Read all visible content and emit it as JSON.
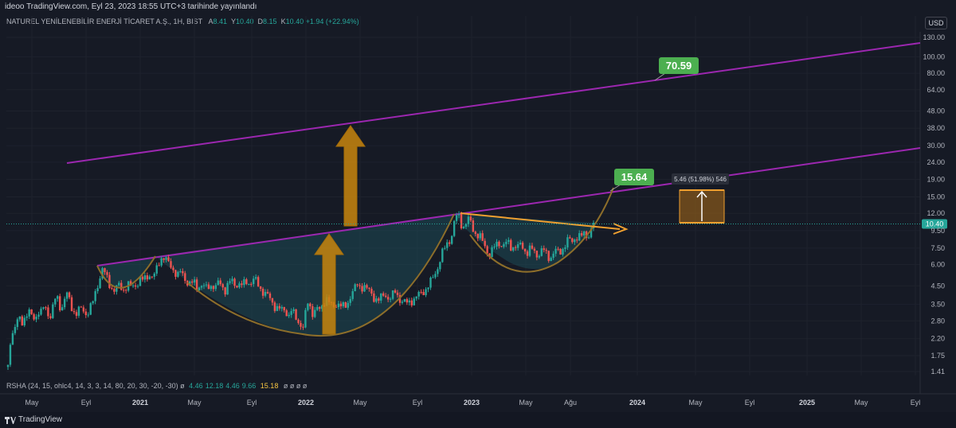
{
  "caption": "ideoo TradingView.com, Eyl 23, 2023 18:55 UTC+3 tarihinde yayınlandı",
  "symbol": {
    "name": "NATUREL YENİLENEBİLİR ENERJİ TİCARET A.Ş., 1H, BIST",
    "ohlc": [
      {
        "key": "A",
        "value": "8.41"
      },
      {
        "key": "Y",
        "value": "10.40"
      },
      {
        "key": "D",
        "value": "8.15"
      },
      {
        "key": "K",
        "value": "10.40 +1.94 (+22.94%)"
      }
    ]
  },
  "currency": "USD",
  "indicator": {
    "label": "RSHA (24, 15, ohlc4, 14, 3, 3, 14, 80, 20, 30, -20, -30)  ø",
    "values_green": [
      "4.46",
      "12.18",
      "4.46",
      "9.66"
    ],
    "value_yellow": "15.18",
    "trailing": "ø  ø  ø  ø"
  },
  "brand": "TradingView",
  "colors": {
    "up": "#26a69a",
    "down": "#ef5350",
    "channel": "#9c27b0",
    "cup": "#8d6e2a",
    "arrow": "#c8860e",
    "label_green": "#4caf50"
  },
  "chart_data": {
    "type": "candlestick",
    "y_scale": "log",
    "y_ticks": [
      "130.00",
      "100.00",
      "80.00",
      "64.00",
      "48.00",
      "38.00",
      "30.00",
      "24.00",
      "19.00",
      "15.00",
      "12.00",
      "9.50",
      "7.50",
      "6.00",
      "4.50",
      "3.50",
      "2.80",
      "2.20",
      "1.75",
      "1.41"
    ],
    "x_ticks": [
      {
        "label": "May",
        "year": false
      },
      {
        "label": "Eyl",
        "year": false
      },
      {
        "label": "2021",
        "year": true
      },
      {
        "label": "May",
        "year": false
      },
      {
        "label": "Eyl",
        "year": false
      },
      {
        "label": "2022",
        "year": true
      },
      {
        "label": "May",
        "year": false
      },
      {
        "label": "Eyl",
        "year": false
      },
      {
        "label": "2023",
        "year": true
      },
      {
        "label": "May",
        "year": false
      },
      {
        "label": "Ağu",
        "year": false
      },
      {
        "label": "2024",
        "year": true
      },
      {
        "label": "May",
        "year": false
      },
      {
        "label": "Eyl",
        "year": false
      },
      {
        "label": "2025",
        "year": true
      },
      {
        "label": "May",
        "year": false
      },
      {
        "label": "Eyl",
        "year": false
      }
    ],
    "last_price": "10.40",
    "target_labels": [
      "70.59",
      "15.64"
    ],
    "measure_label": "5.46 (51.98%) 546",
    "price_path": [
      [
        0,
        1.5
      ],
      [
        2,
        2.1
      ],
      [
        6,
        2.4
      ],
      [
        10,
        2.6
      ],
      [
        14,
        2.9
      ],
      [
        18,
        2.8
      ],
      [
        22,
        3.0
      ],
      [
        26,
        3.1
      ],
      [
        30,
        3.0
      ],
      [
        34,
        2.9
      ],
      [
        38,
        3.2
      ],
      [
        42,
        3.1
      ],
      [
        46,
        3.4
      ],
      [
        50,
        3.2
      ],
      [
        54,
        3.0
      ],
      [
        58,
        3.5
      ],
      [
        62,
        3.9
      ],
      [
        64,
        3.6
      ],
      [
        68,
        3.3
      ],
      [
        72,
        3.8
      ],
      [
        76,
        4.0
      ],
      [
        80,
        3.4
      ],
      [
        84,
        3.2
      ],
      [
        88,
        3.1
      ],
      [
        92,
        3.3
      ],
      [
        96,
        3.2
      ],
      [
        100,
        3.1
      ],
      [
        104,
        3.3
      ],
      [
        108,
        3.6
      ],
      [
        112,
        4.2
      ],
      [
        116,
        5.0
      ],
      [
        120,
        5.6
      ],
      [
        124,
        5.2
      ],
      [
        128,
        4.7
      ],
      [
        132,
        4.4
      ],
      [
        136,
        4.2
      ],
      [
        140,
        4.5
      ],
      [
        144,
        4.4
      ],
      [
        148,
        4.3
      ],
      [
        152,
        4.6
      ],
      [
        156,
        4.4
      ],
      [
        160,
        4.5
      ],
      [
        164,
        4.7
      ],
      [
        168,
        4.9
      ],
      [
        172,
        4.8
      ],
      [
        176,
        5.1
      ],
      [
        180,
        5.3
      ],
      [
        184,
        5.0
      ],
      [
        188,
        5.4
      ],
      [
        192,
        6.2
      ],
      [
        196,
        6.8
      ],
      [
        200,
        6.5
      ],
      [
        204,
        6.0
      ],
      [
        208,
        5.8
      ],
      [
        212,
        5.5
      ],
      [
        216,
        5.2
      ],
      [
        220,
        5.4
      ],
      [
        224,
        5.0
      ],
      [
        228,
        4.8
      ],
      [
        232,
        4.6
      ],
      [
        236,
        4.7
      ],
      [
        240,
        4.4
      ],
      [
        244,
        4.6
      ],
      [
        248,
        4.5
      ],
      [
        252,
        4.3
      ],
      [
        256,
        4.5
      ],
      [
        260,
        4.6
      ],
      [
        264,
        4.4
      ],
      [
        268,
        4.7
      ],
      [
        272,
        4.5
      ],
      [
        276,
        4.3
      ],
      [
        280,
        4.6
      ],
      [
        284,
        4.8
      ],
      [
        288,
        4.6
      ],
      [
        292,
        4.7
      ],
      [
        296,
        4.5
      ],
      [
        300,
        4.6
      ],
      [
        304,
        4.8
      ],
      [
        308,
        4.7
      ],
      [
        312,
        4.9
      ],
      [
        316,
        4.7
      ],
      [
        320,
        4.4
      ],
      [
        324,
        4.2
      ],
      [
        328,
        4.0
      ],
      [
        332,
        3.8
      ],
      [
        336,
        3.6
      ],
      [
        340,
        3.4
      ],
      [
        344,
        3.3
      ],
      [
        348,
        3.2
      ],
      [
        352,
        3.3
      ],
      [
        356,
        3.0
      ],
      [
        360,
        3.2
      ],
      [
        364,
        3.0
      ],
      [
        368,
        2.8
      ],
      [
        372,
        2.7
      ],
      [
        376,
        2.5
      ],
      [
        380,
        3.6
      ],
      [
        384,
        3.4
      ],
      [
        388,
        3.1
      ],
      [
        392,
        3.3
      ],
      [
        396,
        3.2
      ],
      [
        400,
        3.5
      ],
      [
        404,
        3.9
      ],
      [
        408,
        3.6
      ],
      [
        412,
        3.3
      ],
      [
        416,
        3.5
      ],
      [
        420,
        3.6
      ],
      [
        424,
        3.4
      ],
      [
        428,
        3.3
      ],
      [
        432,
        3.6
      ],
      [
        436,
        4.1
      ],
      [
        440,
        4.3
      ],
      [
        444,
        4.5
      ],
      [
        448,
        4.4
      ],
      [
        452,
        4.6
      ],
      [
        456,
        4.3
      ],
      [
        460,
        4.1
      ],
      [
        464,
        3.9
      ],
      [
        468,
        3.8
      ],
      [
        472,
        3.7
      ],
      [
        476,
        3.9
      ],
      [
        480,
        4.0
      ],
      [
        484,
        3.8
      ],
      [
        488,
        3.9
      ],
      [
        492,
        4.1
      ],
      [
        496,
        3.9
      ],
      [
        500,
        3.7
      ],
      [
        504,
        3.6
      ],
      [
        508,
        3.5
      ],
      [
        512,
        3.7
      ],
      [
        516,
        3.8
      ],
      [
        520,
        3.9
      ],
      [
        524,
        4.0
      ],
      [
        528,
        4.2
      ],
      [
        532,
        4.4
      ],
      [
        536,
        4.6
      ],
      [
        540,
        5.0
      ],
      [
        544,
        5.5
      ],
      [
        548,
        6.2
      ],
      [
        552,
        7.0
      ],
      [
        556,
        7.6
      ],
      [
        560,
        8.3
      ],
      [
        564,
        9.0
      ],
      [
        568,
        11.0
      ],
      [
        572,
        11.8
      ],
      [
        576,
        10.5
      ],
      [
        580,
        10.0
      ],
      [
        584,
        11.0
      ],
      [
        588,
        10.6
      ],
      [
        592,
        9.5
      ],
      [
        596,
        9.0
      ],
      [
        600,
        8.6
      ],
      [
        604,
        8.0
      ],
      [
        608,
        7.4
      ],
      [
        612,
        6.9
      ],
      [
        616,
        7.3
      ],
      [
        620,
        7.8
      ],
      [
        624,
        8.2
      ],
      [
        628,
        7.7
      ],
      [
        632,
        7.9
      ],
      [
        636,
        8.0
      ],
      [
        640,
        7.6
      ],
      [
        644,
        7.8
      ],
      [
        648,
        7.5
      ],
      [
        652,
        7.9
      ],
      [
        656,
        7.4
      ],
      [
        660,
        7.1
      ],
      [
        664,
        7.4
      ],
      [
        668,
        7.2
      ],
      [
        672,
        6.9
      ],
      [
        676,
        7.1
      ],
      [
        680,
        7.3
      ],
      [
        684,
        6.9
      ],
      [
        688,
        6.6
      ],
      [
        692,
        6.9
      ],
      [
        696,
        7.2
      ],
      [
        700,
        7.0
      ],
      [
        704,
        7.4
      ],
      [
        708,
        7.9
      ],
      [
        712,
        8.4
      ],
      [
        716,
        8.1
      ],
      [
        720,
        8.6
      ],
      [
        724,
        8.9
      ],
      [
        728,
        8.6
      ],
      [
        732,
        9.1
      ],
      [
        736,
        8.9
      ],
      [
        740,
        9.3
      ],
      [
        744,
        10.4
      ]
    ]
  }
}
